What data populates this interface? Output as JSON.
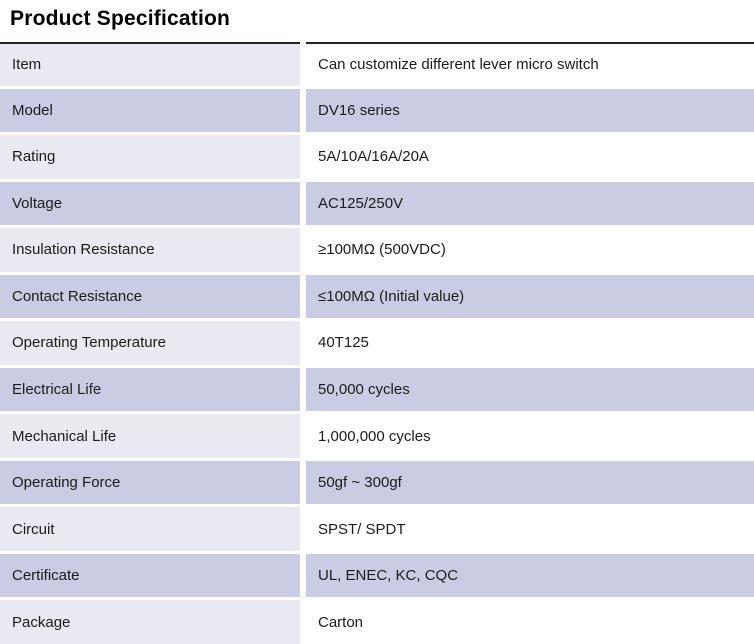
{
  "title": "Product Specification",
  "table": {
    "rows": [
      {
        "label": "Item",
        "value": "Can customize different lever micro switch"
      },
      {
        "label": "Model",
        "value": "DV16 series"
      },
      {
        "label": "Rating",
        "value": "5A/10A/16A/20A"
      },
      {
        "label": "Voltage",
        "value": "AC125/250V"
      },
      {
        "label": "Insulation Resistance",
        "value": "≥100MΩ (500VDC)"
      },
      {
        "label": "Contact Resistance",
        "value": "≤100MΩ (Initial value)"
      },
      {
        "label": "Operating Temperature",
        "value": "40T125"
      },
      {
        "label": "Electrical Life",
        "value": "50,000 cycles"
      },
      {
        "label": "Mechanical Life",
        "value": "1,000,000 cycles"
      },
      {
        "label": "Operating Force",
        "value": "50gf ~ 300gf"
      },
      {
        "label": "Circuit",
        "value": "SPST/ SPDT"
      },
      {
        "label": "Certificate",
        "value": "UL, ENEC, KC, CQC"
      },
      {
        "label": "Package",
        "value": "Carton"
      }
    ]
  },
  "colors": {
    "row_lavender": "#c9cce3",
    "row_light": "#e8e9f1",
    "row_white": "#ffffff",
    "top_border": "#242424",
    "text": "#1c1c1c",
    "title": "#000000"
  }
}
